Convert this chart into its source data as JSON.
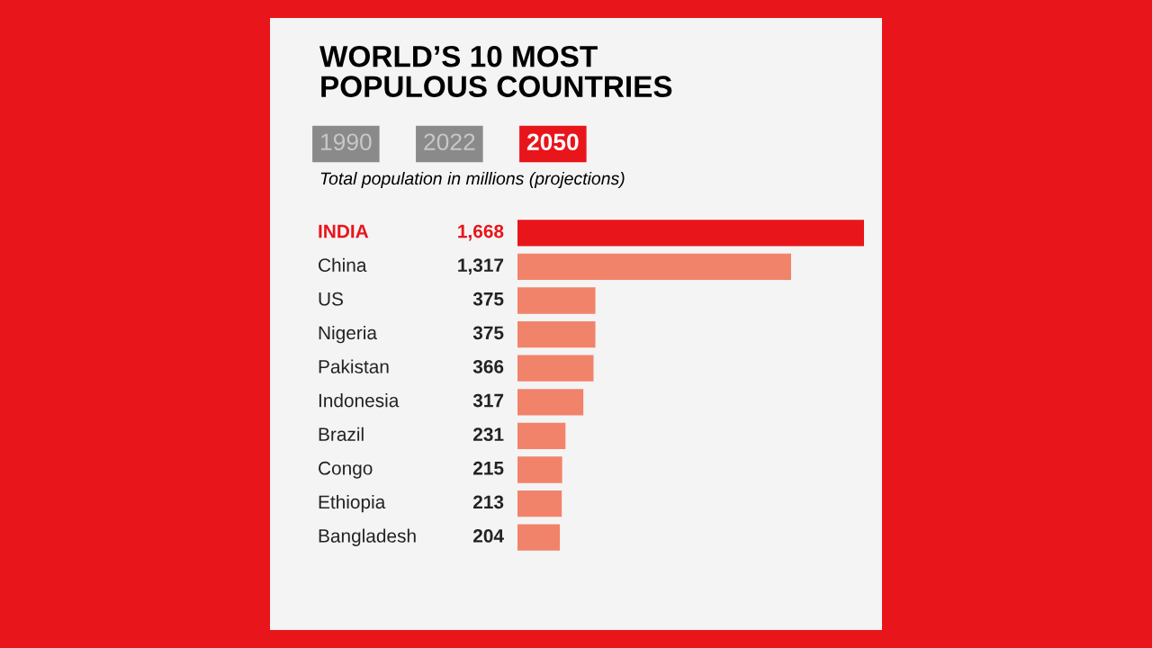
{
  "chart_data": {
    "type": "bar",
    "orientation": "horizontal",
    "title": "WORLD’S 10 MOST\nPOPULOUS COUNTRIES",
    "subtitle": "Total population in millions (projections)",
    "annotations": [
      "1990",
      "2022",
      "2050"
    ],
    "categories": [
      "INDIA",
      "China",
      "US",
      "Nigeria",
      "Pakistan",
      "Indonesia",
      "Brazil",
      "Congo",
      "Ethiopia",
      "Bangladesh"
    ],
    "values": [
      1668,
      1317,
      375,
      375,
      366,
      317,
      231,
      215,
      213,
      204
    ],
    "value_labels": [
      "1,668",
      "1,317",
      "375",
      "375",
      "366",
      "317",
      "231",
      "215",
      "213",
      "204"
    ],
    "colors": [
      "#e8151b",
      "#f2836b",
      "#f2836b",
      "#f2836b",
      "#f2836b",
      "#f2836b",
      "#f2836b",
      "#f2836b",
      "#f2836b",
      "#f2836b"
    ],
    "legend": false
  }
}
